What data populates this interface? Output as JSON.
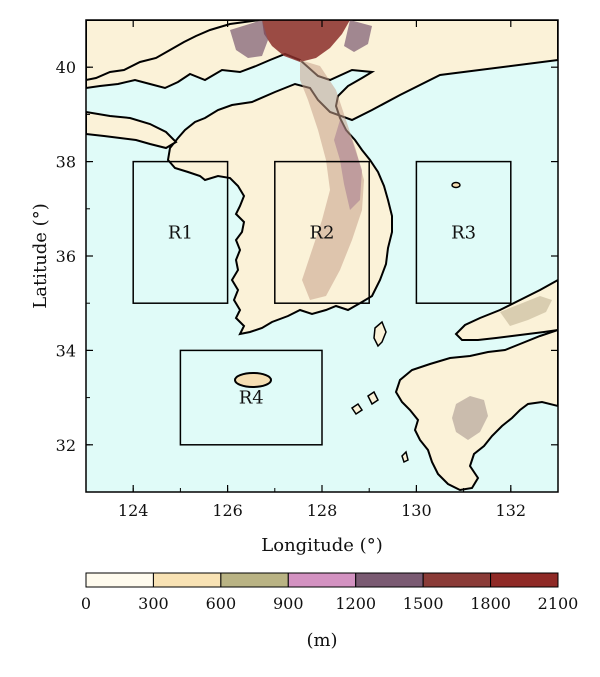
{
  "map": {
    "x_axis": {
      "title": "Longitude (°)",
      "ticks": [
        "124",
        "126",
        "128",
        "130",
        "132"
      ]
    },
    "y_axis": {
      "title": "Latitude (°)",
      "ticks": [
        "40",
        "38",
        "36",
        "34",
        "32"
      ]
    },
    "extent": {
      "lon": [
        123,
        133
      ],
      "lat": [
        31,
        41
      ]
    },
    "sea_color": "#e0fbf8",
    "land_color": "#fbf2d8",
    "regions": [
      {
        "label": "R1",
        "lon": [
          124,
          126
        ],
        "lat": [
          35,
          38
        ]
      },
      {
        "label": "R2",
        "lon": [
          127,
          129
        ],
        "lat": [
          35,
          38
        ]
      },
      {
        "label": "R3",
        "lon": [
          130,
          132
        ],
        "lat": [
          35,
          38
        ]
      },
      {
        "label": "R4",
        "lon": [
          125,
          128
        ],
        "lat": [
          32,
          34
        ]
      }
    ]
  },
  "colorbar": {
    "ticks": [
      "0",
      "300",
      "600",
      "900",
      "1200",
      "1500",
      "1800",
      "2100"
    ],
    "unit": "(m)",
    "colors": [
      "#fffbee",
      "#f8e2b4",
      "#b9b384",
      "#d392c1",
      "#7a5a72",
      "#8a3b37",
      "#8f2a26"
    ]
  }
}
